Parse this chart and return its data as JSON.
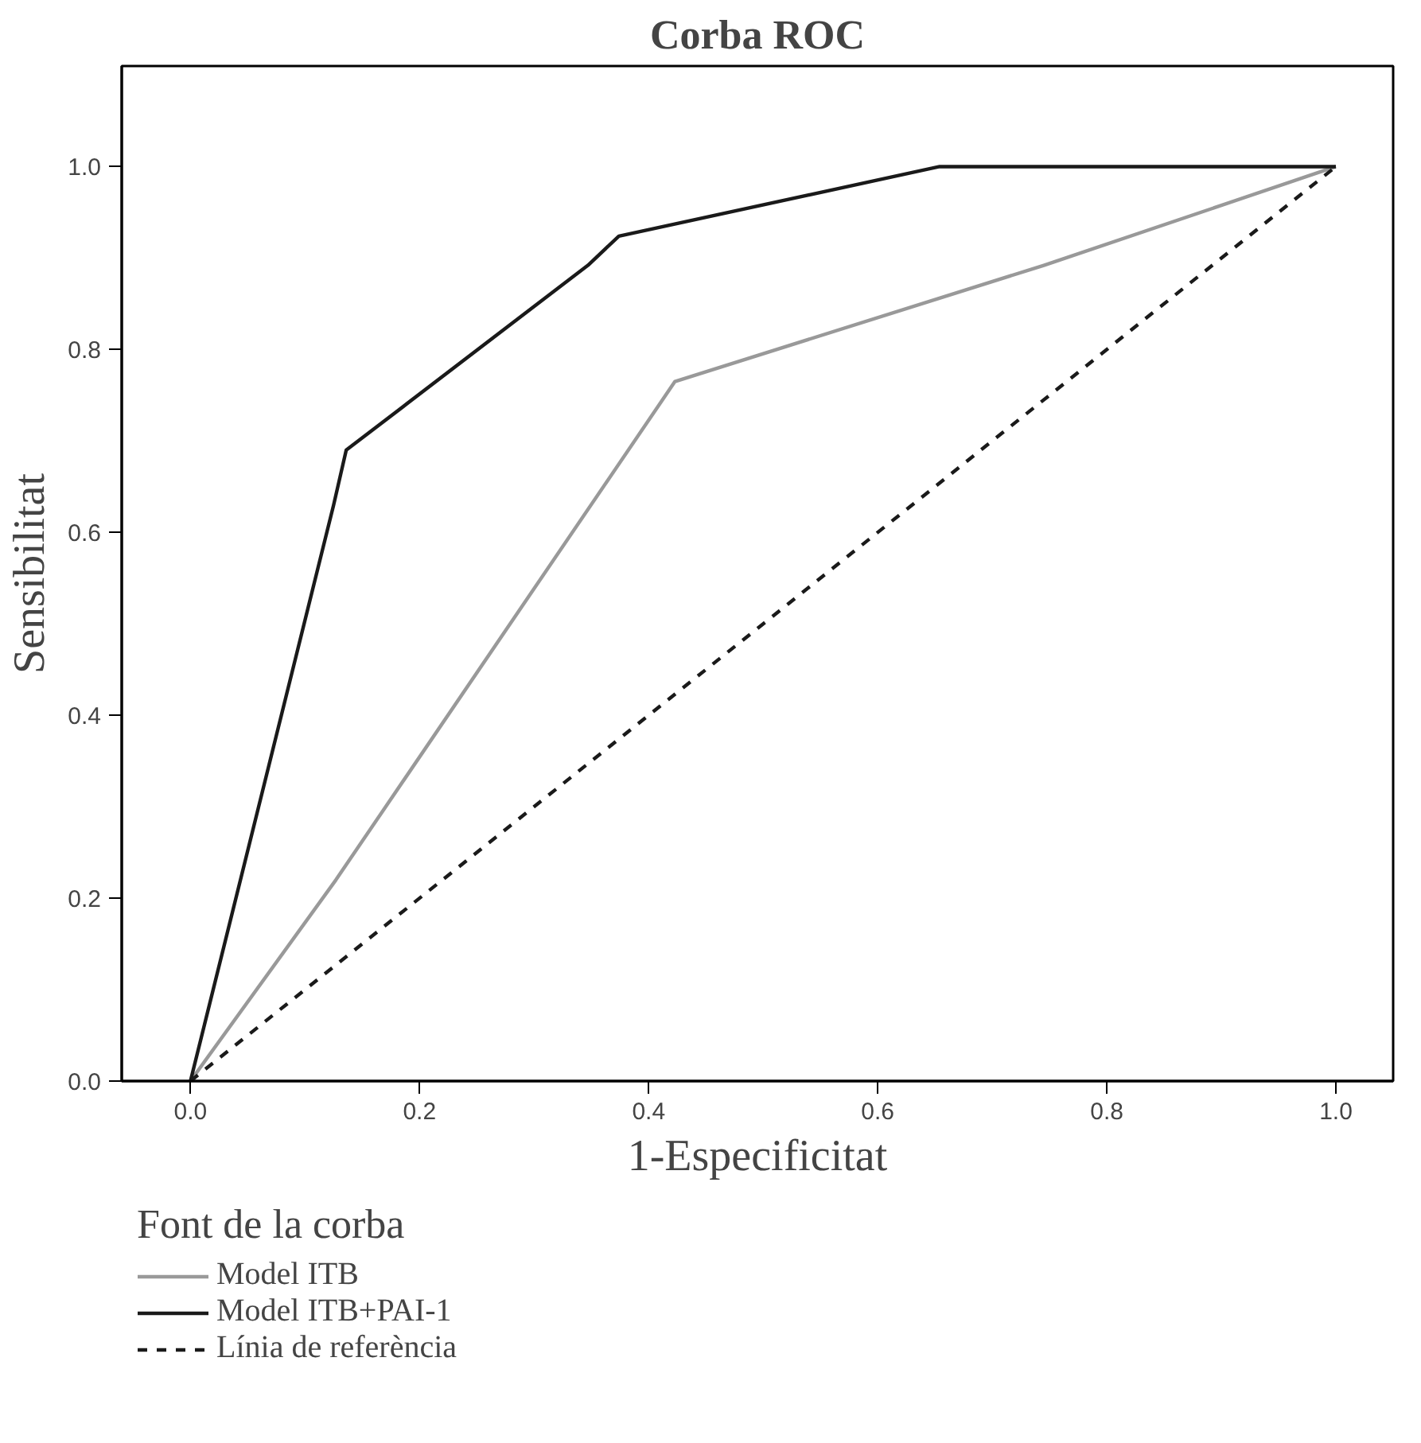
{
  "chart_data": {
    "type": "line",
    "title": "Corba ROC",
    "xlabel": "1-Especificitat",
    "ylabel": "Sensibilitat",
    "legend_title": "Font de la corba",
    "xlim": [
      -0.06,
      1.05
    ],
    "ylim": [
      0,
      1.11
    ],
    "xticks": [
      {
        "value": 0,
        "label": "0.0"
      },
      0.2,
      0.4,
      0.6,
      0.8,
      {
        "value": 1,
        "label": "1.0"
      }
    ],
    "yticks": [
      {
        "value": 0,
        "label": "0.0"
      },
      0.2,
      0.4,
      0.6,
      0.8,
      {
        "value": 1,
        "label": "1.0"
      }
    ],
    "grid": false,
    "legend": "bottom",
    "marker": "none",
    "series": [
      {
        "name": "Model ITB",
        "color": "#999999",
        "line_style": "solid",
        "x": [
          0,
          0.127,
          0.423,
          0.745,
          1
        ],
        "values": [
          0,
          0.22,
          0.765,
          0.892,
          1
        ]
      },
      {
        "name": "Model ITB+PAI-1",
        "color": "#1a1a1a",
        "line_style": "solid",
        "x": [
          0,
          0.125,
          0.136,
          0.347,
          0.374,
          0.654,
          1
        ],
        "values": [
          0,
          0.63,
          0.69,
          0.892,
          0.924,
          1,
          1
        ]
      },
      {
        "name": "Línia de referència",
        "color": "#1a1a1a",
        "line_style": "dashed",
        "x": [
          0,
          1
        ],
        "values": [
          0,
          1
        ]
      }
    ]
  }
}
